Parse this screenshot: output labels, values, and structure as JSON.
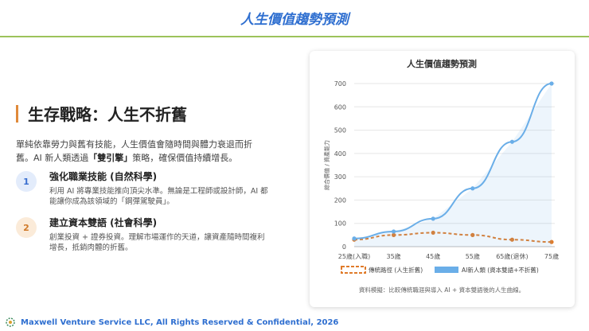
{
  "header": {
    "title": "人生價值趨勢預測"
  },
  "left": {
    "section_title": "生存戰略：人生不折舊",
    "intro_line1": "單純依靠勞力與舊有技能，人生價值會隨時間與體力衰退而折",
    "intro_line2_pre": "舊。AI 新人類透過",
    "intro_bold": "「雙引擎」",
    "intro_line2_post": "策略，確保價值持續增長。",
    "items": [
      {
        "num": "1",
        "title": "強化職業技能 (自然科學)",
        "desc1": "利用 AI 將專業技能推向頂尖水準。無論是工程師或設計師，AI 都",
        "desc2": "能讓你成為該領域的「鋼彈駕駛員」。"
      },
      {
        "num": "2",
        "title": "建立資本雙語 (社會科學)",
        "desc1": "創業投資 + 證券投資。理解市場運作的天道，讓資產隨時間複利",
        "desc2": "增長，抵銷肉體的折舊。"
      }
    ]
  },
  "chart_data": {
    "type": "line",
    "title": "人生價值趨勢預測",
    "ylabel": "綜合價值 / 資產能力",
    "xlabel": "",
    "categories": [
      "25歲(入職)",
      "35歲",
      "45歲",
      "55歲",
      "65歲(退休)",
      "75歲"
    ],
    "ylim": [
      0,
      700
    ],
    "yticks": [
      0,
      100,
      200,
      300,
      400,
      500,
      600,
      700
    ],
    "grid": "horizontal",
    "legend_position": "bottom",
    "series": [
      {
        "name": "傳統路徑 (人生折舊)",
        "values": [
          30,
          50,
          60,
          50,
          30,
          20
        ],
        "color": "#e07b2a",
        "style": "dashed"
      },
      {
        "name": "AI新人類 (資本雙語+不折舊)",
        "values": [
          35,
          65,
          120,
          250,
          450,
          700
        ],
        "color": "#6aaee8",
        "style": "solid"
      }
    ],
    "source_note": "資料模擬：比較傳統職涯與導入 AI + 資本雙語後的人生曲線。"
  },
  "footer": {
    "text": "Maxwell Venture Service LLC, All Rights Reserved & Confidential, 2026"
  },
  "colors": {
    "accent_blue": "#2f6fd0",
    "accent_green": "#9cc35a",
    "accent_orange": "#e08a3a"
  }
}
